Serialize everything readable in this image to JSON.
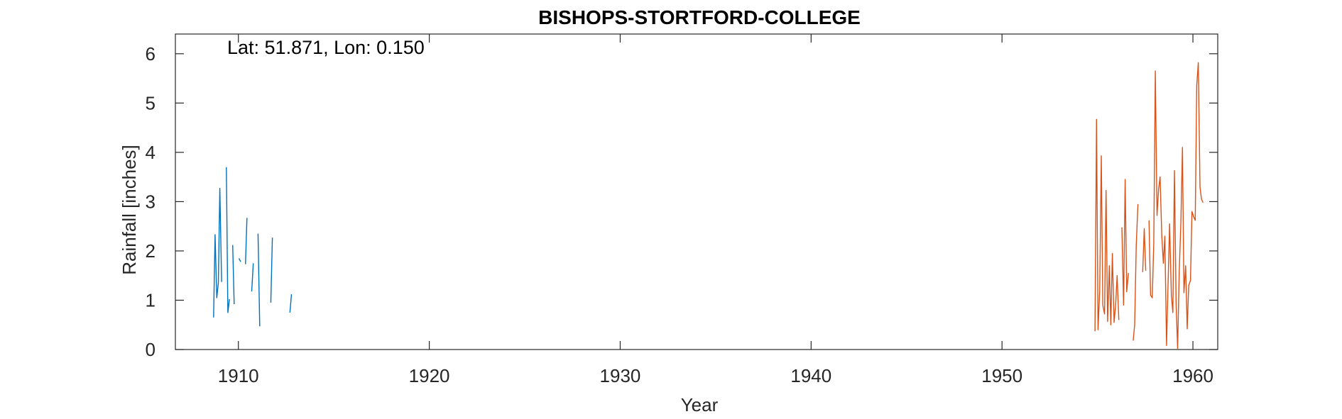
{
  "chart_data": {
    "type": "line",
    "title": "BISHOPS-STORTFORD-COLLEGE",
    "annotation": "Lat: 51.871, Lon: 0.150",
    "xlabel": "Year",
    "ylabel": "Rainfall [inches]",
    "xlim": [
      1906.7,
      1961.3
    ],
    "ylim": [
      0,
      6.4
    ],
    "xticks": [
      1910,
      1920,
      1930,
      1940,
      1950,
      1960
    ],
    "yticks": [
      0,
      1,
      2,
      3,
      4,
      5,
      6
    ],
    "grid": false,
    "series": [
      {
        "color": "#0072BD",
        "segments": [
          {
            "x": [
              1908.7,
              1908.78,
              1908.87,
              1908.95,
              1909.03,
              1909.12
            ],
            "y": [
              0.65,
              2.33,
              1.05,
              1.35,
              3.27,
              1.37
            ]
          },
          {
            "x": [
              1909.37,
              1909.45,
              1909.53
            ],
            "y": [
              3.7,
              0.75,
              1.02
            ]
          },
          {
            "x": [
              1909.7,
              1909.78
            ],
            "y": [
              2.12,
              0.92
            ]
          },
          {
            "x": [
              1910.03,
              1910.12
            ],
            "y": [
              1.85,
              1.78
            ]
          },
          {
            "x": [
              1910.37,
              1910.45
            ],
            "y": [
              1.73,
              2.67
            ]
          },
          {
            "x": [
              1910.7,
              1910.78
            ],
            "y": [
              1.18,
              1.75
            ]
          },
          {
            "x": [
              1911.03,
              1911.12
            ],
            "y": [
              2.35,
              0.47
            ]
          },
          {
            "x": [
              1911.7,
              1911.78
            ],
            "y": [
              0.95,
              2.27
            ]
          },
          {
            "x": [
              1912.7,
              1912.78
            ],
            "y": [
              0.75,
              1.12
            ]
          }
        ]
      },
      {
        "color": "#D95319",
        "segments": [
          {
            "x": [
              1954.87,
              1954.95,
              1955.03,
              1955.12,
              1955.2,
              1955.28,
              1955.37,
              1955.45,
              1955.53,
              1955.62,
              1955.7,
              1955.78,
              1955.87,
              1955.95,
              1956.03,
              1956.12
            ],
            "y": [
              0.37,
              4.67,
              0.4,
              1.2,
              3.93,
              0.9,
              0.72,
              3.23,
              0.57,
              1.7,
              0.5,
              1.95,
              0.55,
              0.9,
              1.5,
              0.6
            ]
          },
          {
            "x": [
              1956.28,
              1956.37,
              1956.45,
              1956.53,
              1956.62
            ],
            "y": [
              2.48,
              0.9,
              3.45,
              1.17,
              1.55
            ]
          },
          {
            "x": [
              1956.87,
              1956.95,
              1957.03,
              1957.12
            ],
            "y": [
              0.18,
              0.5,
              2.1,
              2.95
            ]
          },
          {
            "x": [
              1957.37,
              1957.45,
              1957.53
            ],
            "y": [
              1.57,
              2.45,
              1.6
            ]
          },
          {
            "x": [
              1957.7,
              1957.78,
              1957.87,
              1957.95,
              1958.03,
              1958.12,
              1958.2,
              1958.28,
              1958.37,
              1958.45,
              1958.53,
              1958.62,
              1958.7,
              1958.78,
              1958.87,
              1958.95,
              1959.03,
              1959.12,
              1959.2,
              1959.28,
              1959.37,
              1959.45,
              1959.53,
              1959.62,
              1959.7,
              1959.78,
              1959.87,
              1959.95,
              1960.03,
              1960.12,
              1960.2,
              1960.28,
              1960.37,
              1960.45,
              1960.53
            ],
            "y": [
              2.62,
              1.1,
              1.05,
              2.15,
              5.65,
              2.72,
              3.25,
              3.5,
              2.3,
              1.75,
              2.3,
              0.08,
              1.35,
              2.55,
              1.1,
              0.75,
              3.63,
              0.9,
              0.02,
              1.55,
              2.58,
              4.1,
              1.15,
              1.7,
              0.42,
              1.3,
              1.4,
              2.8,
              2.7,
              2.62,
              5.35,
              5.82,
              3.3,
              3.05,
              2.98
            ]
          }
        ]
      }
    ]
  }
}
